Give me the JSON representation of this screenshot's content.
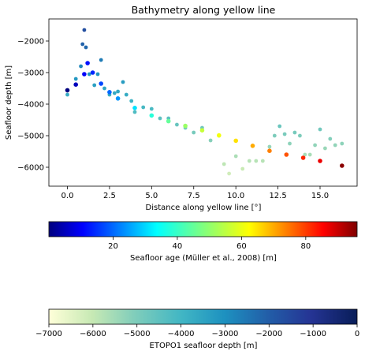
{
  "chart_data": [
    {
      "type": "scatter",
      "title": "Bathymetry along yellow line",
      "xlabel": "Distance along yellow line [$^\\circ$]",
      "xlabel_display": "Distance along yellow line [°]",
      "ylabel": "Seafloor depth [m]",
      "xlim": [
        -1.1,
        17.2
      ],
      "ylim": [
        -6600,
        -1300
      ],
      "xticks": [
        0.0,
        2.5,
        5.0,
        7.5,
        10.0,
        12.5,
        15.0
      ],
      "xtick_labels": [
        "0.0",
        "2.5",
        "5.0",
        "7.5",
        "10.0",
        "12.5",
        "15.0"
      ],
      "yticks": [
        -6000,
        -5000,
        -4000,
        -3000,
        -2000
      ],
      "ytick_labels": [
        "−6000",
        "−5000",
        "−4000",
        "−3000",
        "−2000"
      ],
      "grid": false,
      "series": [
        {
          "kind": "age-colored depth curve",
          "x": [
            0,
            0.5,
            1.0,
            1.2,
            1.5,
            2.0,
            2.5,
            3.0,
            4.0,
            5.0,
            6.0,
            7.0,
            8.0,
            9.0,
            10.0,
            11.0,
            12.0,
            13.0,
            14.0,
            15.0,
            16.3
          ],
          "y": [
            -3560,
            -3380,
            -3050,
            -2700,
            -3000,
            -3350,
            -3620,
            -3820,
            -4120,
            -4360,
            -4540,
            -4690,
            -4830,
            -4990,
            -5160,
            -5320,
            -5480,
            -5600,
            -5700,
            -5800,
            -5950
          ],
          "age": [
            0,
            5,
            10,
            12,
            14,
            17,
            20,
            24,
            31,
            38,
            45,
            51,
            56,
            61,
            65,
            70,
            74,
            78,
            82,
            87,
            95
          ]
        },
        {
          "kind": "ETOPO1 depth points",
          "x": [
            0,
            0.5,
            0.8,
            0.9,
            1.0,
            1.1,
            1.3,
            1.6,
            1.8,
            2.0,
            2.2,
            2.5,
            2.8,
            3.0,
            3.3,
            3.5,
            3.8,
            4.0,
            4.5,
            5.0,
            5.5,
            6.0,
            6.5,
            7.0,
            7.5,
            8.0,
            8.5,
            9.0,
            9.3,
            9.6,
            10.0,
            10.4,
            10.8,
            11.2,
            11.6,
            12.0,
            12.3,
            12.6,
            12.9,
            13.2,
            13.5,
            13.8,
            14.1,
            14.4,
            14.7,
            15.0,
            15.3,
            15.6,
            15.9,
            16.3
          ],
          "y": [
            -3700,
            -3200,
            -2800,
            -2100,
            -1650,
            -2200,
            -3050,
            -3400,
            -3050,
            -2600,
            -3500,
            -3700,
            -3650,
            -3600,
            -3300,
            -3700,
            -3900,
            -4250,
            -4100,
            -4150,
            -4450,
            -4450,
            -4650,
            -4750,
            -4900,
            -4750,
            -5150,
            -5000,
            -5900,
            -6200,
            -5650,
            -6050,
            -5800,
            -5800,
            -5800,
            -5350,
            -5000,
            -4700,
            -4950,
            -5250,
            -4900,
            -5000,
            -5600,
            -5600,
            -5300,
            -4800,
            -5400,
            -5100,
            -5300,
            -5250
          ],
          "depth": [
            -3700,
            -3200,
            -2800,
            -2100,
            -1650,
            -2200,
            -3050,
            -3400,
            -3050,
            -2600,
            -3500,
            -3700,
            -3650,
            -3600,
            -3300,
            -3700,
            -3900,
            -4250,
            -4100,
            -4150,
            -4450,
            -4450,
            -4650,
            -4750,
            -4900,
            -4750,
            -5150,
            -5000,
            -5900,
            -6200,
            -5650,
            -6050,
            -5800,
            -5800,
            -5800,
            -5350,
            -5000,
            -4700,
            -4950,
            -5250,
            -4900,
            -5000,
            -5600,
            -5600,
            -5300,
            -4800,
            -5400,
            -5100,
            -5300,
            -5250
          ]
        }
      ]
    },
    {
      "type": "colorbar",
      "label": "Seafloor age (Müller et al., 2008) [m]",
      "colormap": "jet",
      "range": [
        0,
        96
      ],
      "ticks": [
        20,
        40,
        60,
        80
      ],
      "tick_labels": [
        "20",
        "40",
        "60",
        "80"
      ]
    },
    {
      "type": "colorbar",
      "label": "ETOPO1 seafloor depth [m]",
      "colormap": "YlGnBu",
      "range": [
        -7000,
        0
      ],
      "ticks": [
        -7000,
        -6000,
        -5000,
        -4000,
        -3000,
        -2000,
        -1000,
        0
      ],
      "tick_labels": [
        "−7000",
        "−6000",
        "−5000",
        "−4000",
        "−3000",
        "−2000",
        "−1000",
        "0"
      ]
    }
  ]
}
